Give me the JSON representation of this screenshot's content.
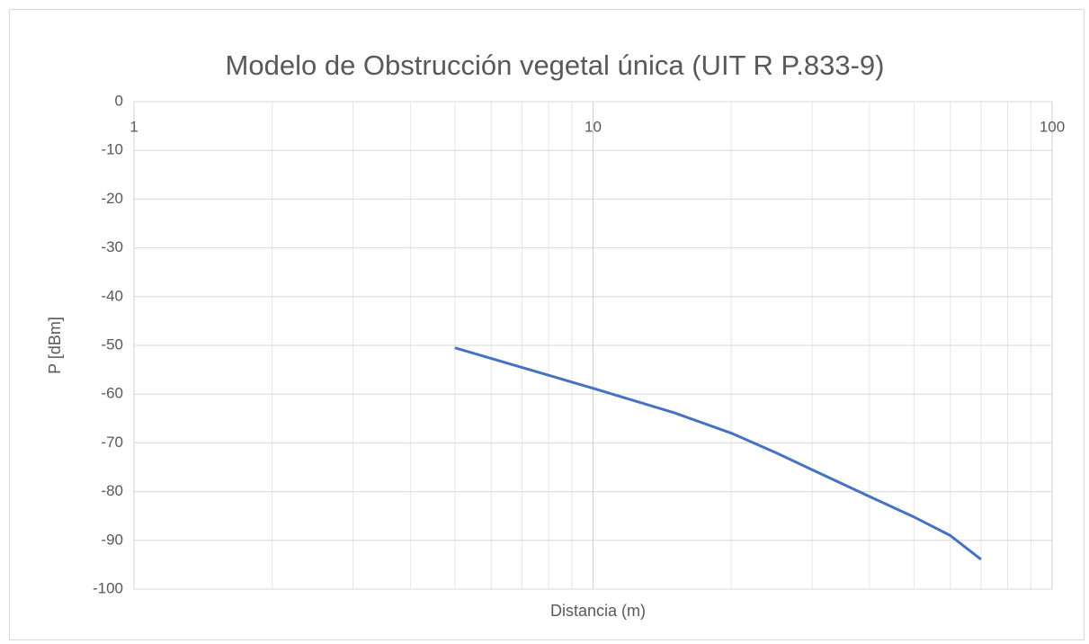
{
  "chart_data": {
    "type": "line",
    "title": "Modelo de Obstrucción vegetal única (UIT R P.833-9)",
    "x_label": "Distancia (m)",
    "y_label": "P [dBm]",
    "x": [
      5,
      10,
      15,
      20,
      25,
      30,
      40,
      50,
      60,
      70
    ],
    "series": [
      {
        "name": "P",
        "color": "#4472c4",
        "values": [
          -50.5,
          -58.8,
          -63.8,
          -68,
          -72,
          -75.5,
          -81,
          -85.2,
          -89,
          -93.9
        ]
      }
    ],
    "xlim": [
      1,
      100
    ],
    "xticks": [
      1,
      10,
      100
    ],
    "xscale": "log",
    "ylim": [
      -100,
      0
    ],
    "yticks": [
      0,
      -10,
      -20,
      -30,
      -40,
      -50,
      -60,
      -70,
      -80,
      -90,
      -100
    ],
    "grid": true,
    "minor_grid": true
  }
}
